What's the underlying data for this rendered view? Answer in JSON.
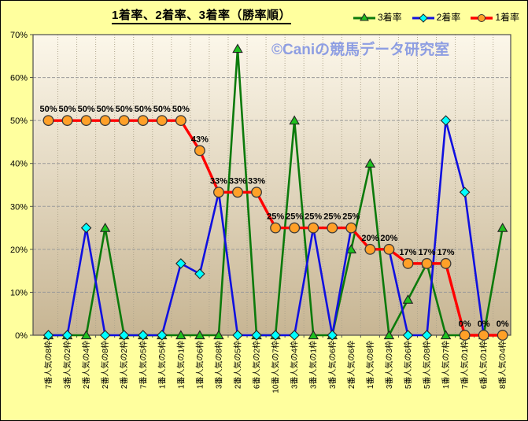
{
  "title": "1着率、2着率、3着率（勝率順）",
  "watermark": "©Caniの競馬データ研究室",
  "colors": {
    "background": "#FFFF9E",
    "plot_gradient_top": "#FCF7EA",
    "plot_gradient_bottom": "#C7B593",
    "watermark_color": "#8E9EE2",
    "red_line": "#FF0000",
    "red_marker": "#FFA028",
    "blue_line": "#1010E0",
    "blue_marker": "#00FFFF",
    "green_line": "#0B7A0B",
    "green_marker": "#1FC11F"
  },
  "chart_data": {
    "type": "line",
    "title": "1着率、2着率、3着率（勝率順）",
    "categories": [
      "7番人気の8枠",
      "3番人気の2枠",
      "2番人気の4枠",
      "2番人気の8枠",
      "2番人気の2枠",
      "7番人気の5枠",
      "1番人気の5枠",
      "1番人気の1枠",
      "1番人気の6枠",
      "3番人気の8枠",
      "2番人気の5枠",
      "6番人気の2枠",
      "10番人気の7枠",
      "3番人気の4枠",
      "3番人気の1枠",
      "3番人気の6枠",
      "2番人気の6枠",
      "1番人気の8枠",
      "3番人気の3枠",
      "5番人気の6枠",
      "5番人気の8枠",
      "1番人気の7枠",
      "7番人気の1枠",
      "6番人気の1枠",
      "8番人気の4枠"
    ],
    "series": [
      {
        "name": "3着率",
        "color": "#0B7A0B",
        "marker": "triangle",
        "marker_fill": "#1FC11F",
        "values": [
          0,
          0,
          0,
          25,
          0,
          0,
          0,
          0,
          0,
          0,
          66.7,
          0,
          0,
          50,
          0,
          0,
          20,
          40,
          0,
          8.3,
          16.7,
          0,
          0,
          0,
          25
        ]
      },
      {
        "name": "2着率",
        "color": "#1010E0",
        "marker": "diamond",
        "marker_fill": "#00FFFF",
        "values": [
          0,
          0,
          25,
          0,
          0,
          0,
          0,
          16.7,
          14.3,
          33.3,
          0,
          0,
          0,
          0,
          25,
          0,
          25,
          20,
          20,
          0,
          0,
          50,
          33.3,
          0,
          0
        ]
      },
      {
        "name": "1着率",
        "color": "#FF0000",
        "marker": "circle",
        "marker_fill": "#FFA028",
        "values": [
          50,
          50,
          50,
          50,
          50,
          50,
          50,
          50,
          43,
          33.3,
          33.3,
          33.3,
          25,
          25,
          25,
          25,
          25,
          20,
          20,
          16.7,
          16.7,
          16.7,
          0,
          0,
          0
        ],
        "labels": [
          "50%",
          "50%",
          "50%",
          "50%",
          "50%",
          "50%",
          "50%",
          "50%",
          "43%",
          "33%",
          "33%",
          "33%",
          "25%",
          "25%",
          "25%",
          "25%",
          "25%",
          "20%",
          "20%",
          "17%",
          "17%",
          "17%",
          "0%",
          "0%",
          "0%"
        ]
      }
    ],
    "ylim": [
      0,
      70
    ],
    "yticks": [
      "0%",
      "10%",
      "20%",
      "30%",
      "40%",
      "50%",
      "60%",
      "70%"
    ],
    "grid": true,
    "legend_position": "top-right",
    "legend_order": [
      "3着率",
      "2着率",
      "1着率"
    ]
  }
}
